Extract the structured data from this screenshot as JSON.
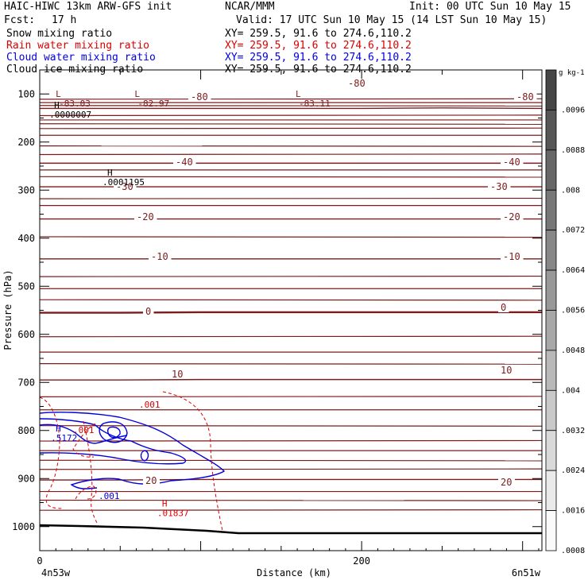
{
  "header": {
    "model": "HAIC-HIWC 13km ARW-GFS init",
    "org": "NCAR/MMM",
    "init": "Init: 00 UTC Sun 10 May 15",
    "fcst_label": "Fcst:",
    "fcst_value": "17 h",
    "valid": "Valid: 17 UTC Sun 10 May 15 (14 LST Sun 10 May 15)"
  },
  "fields": [
    {
      "name": "Snow mixing ratio",
      "xy": "XY= 259.5, 91.6 to 274.6,110.2",
      "color": "#000000"
    },
    {
      "name": "Rain water mixing ratio",
      "xy": "XY= 259.5, 91.6 to 274.6,110.2",
      "color": "#dd0000"
    },
    {
      "name": "Cloud water mixing ratio",
      "xy": "XY= 259.5, 91.6 to 274.6,110.2",
      "color": "#0000dd"
    },
    {
      "name": "Cloud ice mixing ratio",
      "xy": "XY= 259.5, 91.6 to 274.6,110.2",
      "color": "#000000"
    }
  ],
  "chart_data": {
    "type": "cross-section contour",
    "xlabel": "Distance (km)",
    "ylabel": "Pressure (hPa)",
    "x_ticks": [
      0,
      200
    ],
    "x_range": [
      0,
      312
    ],
    "left_endpoint": "4n53w",
    "right_endpoint": "6n51w",
    "y_ticks": [
      100,
      200,
      300,
      400,
      500,
      600,
      700,
      800,
      900,
      1000
    ],
    "y_range": [
      50,
      1050
    ],
    "temperature_contour_labels": [
      "-80",
      "-40",
      "-30",
      "-20",
      "-10",
      "0",
      "10",
      "20"
    ],
    "temperature_contours": [
      {
        "label": "-80",
        "p": [
          130,
          130,
          130,
          130,
          130,
          129,
          130
        ]
      },
      {
        "label": "-40",
        "p": [
          244,
          244,
          244,
          244,
          244,
          244,
          244
        ]
      },
      {
        "label": "-30",
        "p": [
          293,
          293,
          293,
          293,
          293,
          293,
          293
        ]
      },
      {
        "label": "-20",
        "p": [
          360,
          360,
          360,
          360,
          360,
          360,
          360
        ]
      },
      {
        "label": "-10",
        "p": [
          443,
          443,
          443,
          443,
          443,
          443,
          443
        ]
      },
      {
        "label": "0",
        "p": [
          555,
          555,
          554,
          554,
          554,
          554,
          554
        ]
      },
      {
        "label": "10",
        "p": [
          695,
          695,
          694,
          694,
          694,
          694,
          694
        ]
      },
      {
        "label": "20",
        "p": [
          903,
          903,
          902,
          902,
          902,
          902,
          902
        ]
      }
    ],
    "isotherm_x": [
      0,
      50,
      100,
      150,
      200,
      250,
      312
    ],
    "extrema_labels": [
      {
        "type": "L",
        "value": "-83.03",
        "x": 6,
        "p": 106
      },
      {
        "type": "L",
        "value": "-82.97",
        "x": 55,
        "p": 106
      },
      {
        "type": "L",
        "value": "-83.11",
        "x": 155,
        "p": 106
      },
      {
        "type": "H",
        "value": ".0000007",
        "x": 5,
        "p": 129
      },
      {
        "type": "H",
        "value": ".0001195",
        "x": 38,
        "p": 270
      },
      {
        "type": "H",
        "value": ".5172",
        "x": 6,
        "p": 802
      },
      {
        "type": "H",
        "value": ".01837",
        "x": 72,
        "p": 958
      }
    ],
    "contour_value_labels": [
      ".001",
      ".001",
      ".001"
    ],
    "colorbar": {
      "unit": "g kg-1",
      "ticks": [
        ".0096",
        ".0088",
        ".008",
        ".0072",
        ".0064",
        ".0056",
        ".0048",
        ".004",
        ".0032",
        ".0024",
        ".0016",
        ".0008"
      ]
    }
  }
}
